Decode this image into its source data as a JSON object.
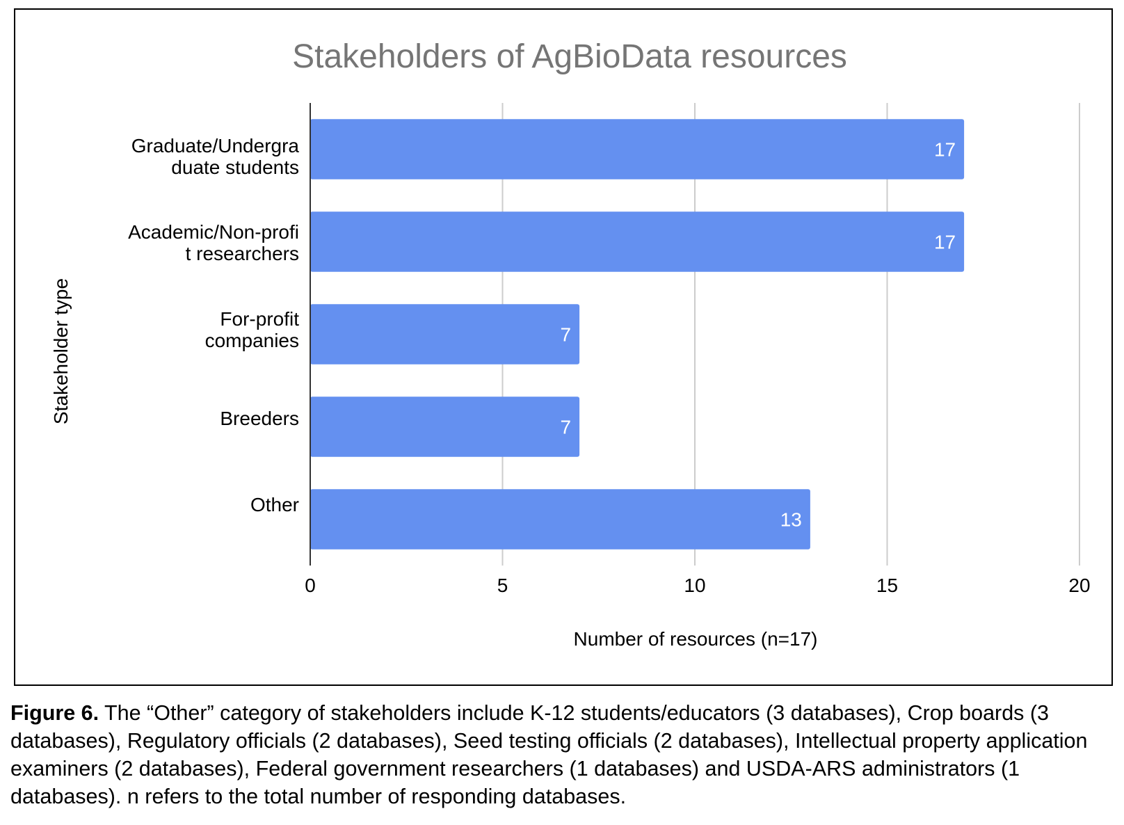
{
  "chart_data": {
    "type": "bar",
    "orientation": "horizontal",
    "title": "Stakeholders of AgBioData resources",
    "xlabel": "Number of resources (n=17)",
    "ylabel": "Stakeholder type",
    "categories": [
      "Graduate/Undergraduate students",
      "Academic/Non-profit researchers",
      "For-profit companies",
      "Breeders",
      "Other"
    ],
    "category_display": [
      "Graduate/Undergra\nduate students",
      "Academic/Non-profi\nt researchers",
      "For-profit\ncompanies",
      "Breeders",
      "Other"
    ],
    "values": [
      17,
      17,
      7,
      7,
      13
    ],
    "xlim": [
      0,
      20
    ],
    "xticks": [
      0,
      5,
      10,
      15,
      20
    ],
    "grid": true,
    "data_labels": true,
    "bar_color": "#6490F0",
    "grid_color": "#cccccc"
  },
  "caption": {
    "label": "Figure 6.",
    "text": " The “Other” category of stakeholders include K-12 students/educators (3 databases), Crop boards (3 databases), Regulatory officials (2 databases), Seed testing officials (2 databases), Intellectual property application examiners (2 databases), Federal government researchers (1 databases) and USDA-ARS administrators (1 databases). n refers to the total number of responding databases."
  }
}
